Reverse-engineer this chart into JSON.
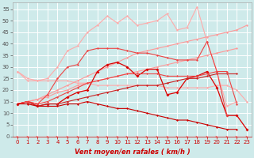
{
  "x": [
    0,
    1,
    2,
    3,
    4,
    5,
    6,
    7,
    8,
    9,
    10,
    11,
    12,
    13,
    14,
    15,
    16,
    17,
    18,
    19,
    20,
    21,
    22,
    23
  ],
  "background_color": "#ceeaea",
  "grid_color": "#ffffff",
  "xlabel": "Vent moyen/en rafales ( km/h )",
  "ylim": [
    0,
    58
  ],
  "xlim": [
    -0.5,
    23.5
  ],
  "yticks": [
    0,
    5,
    10,
    15,
    20,
    25,
    30,
    35,
    40,
    45,
    50,
    55
  ],
  "series": [
    {
      "y": [
        28,
        25,
        24,
        24,
        24,
        24,
        23,
        23,
        22,
        22,
        22,
        22,
        22,
        22,
        22,
        21,
        21,
        21,
        21,
        21,
        22,
        22,
        20,
        15
      ],
      "color": "#ffaaaa",
      "marker": "D",
      "markersize": 1.5,
      "linewidth": 0.8,
      "linestyle": "-"
    },
    {
      "y": [
        28,
        24,
        24,
        25,
        30,
        37,
        39,
        45,
        48,
        52,
        49,
        52,
        48,
        49,
        50,
        53,
        46,
        47,
        56,
        41,
        28,
        13,
        15,
        null
      ],
      "color": "#ffaaaa",
      "marker": "D",
      "markersize": 1.5,
      "linewidth": 0.8,
      "linestyle": "-"
    },
    {
      "y": [
        14,
        15,
        16,
        18,
        20,
        22,
        24,
        26,
        28,
        30,
        32,
        34,
        36,
        37,
        38,
        39,
        40,
        41,
        42,
        43,
        44,
        45,
        46,
        48
      ],
      "color": "#ff9999",
      "marker": "D",
      "markersize": 1.5,
      "linewidth": 0.8,
      "linestyle": "-"
    },
    {
      "y": [
        14,
        15,
        16,
        17,
        19,
        20,
        22,
        23,
        24,
        25,
        26,
        27,
        28,
        29,
        30,
        31,
        32,
        33,
        34,
        35,
        36,
        37,
        38,
        null
      ],
      "color": "#ff9999",
      "marker": "D",
      "markersize": 1.5,
      "linewidth": 0.8,
      "linestyle": "-"
    },
    {
      "y": [
        14,
        15,
        13,
        14,
        14,
        17,
        19,
        20,
        28,
        31,
        32,
        30,
        26,
        29,
        29,
        18,
        19,
        25,
        26,
        28,
        21,
        9,
        9,
        3
      ],
      "color": "#dd0000",
      "marker": "D",
      "markersize": 2,
      "linewidth": 0.9,
      "linestyle": "-"
    },
    {
      "y": [
        14,
        15,
        13,
        14,
        14,
        15,
        16,
        17,
        18,
        19,
        20,
        21,
        22,
        22,
        22,
        23,
        24,
        25,
        25,
        26,
        27,
        27,
        27,
        null
      ],
      "color": "#cc2222",
      "marker": "D",
      "markersize": 1.5,
      "linewidth": 0.8,
      "linestyle": "-"
    },
    {
      "y": [
        14,
        15,
        14,
        15,
        17,
        19,
        21,
        23,
        24,
        25,
        26,
        27,
        27,
        27,
        27,
        26,
        26,
        26,
        26,
        27,
        28,
        28,
        14,
        null
      ],
      "color": "#ee4444",
      "marker": "D",
      "markersize": 1.5,
      "linewidth": 0.8,
      "linestyle": "-"
    },
    {
      "y": [
        14,
        15,
        14,
        18,
        25,
        30,
        31,
        37,
        38,
        38,
        38,
        37,
        36,
        36,
        35,
        34,
        33,
        33,
        33,
        41,
        28,
        9,
        null,
        null
      ],
      "color": "#ee4444",
      "marker": "D",
      "markersize": 1.5,
      "linewidth": 0.8,
      "linestyle": "-"
    },
    {
      "y": [
        14,
        14,
        13,
        13,
        13,
        14,
        14,
        15,
        14,
        13,
        12,
        12,
        11,
        10,
        9,
        8,
        7,
        7,
        6,
        5,
        4,
        3,
        3,
        null
      ],
      "color": "#cc0000",
      "marker": "D",
      "markersize": 1.5,
      "linewidth": 0.8,
      "linestyle": "-"
    },
    {
      "y": [
        0,
        0,
        0,
        0,
        0,
        0,
        0,
        0,
        0,
        0,
        0,
        0,
        0,
        0,
        0,
        0,
        0,
        0,
        0,
        0,
        0,
        0,
        0,
        0
      ],
      "color": "#ff6666",
      "marker": ">",
      "markersize": 2.5,
      "linewidth": 0,
      "linestyle": "none"
    }
  ]
}
